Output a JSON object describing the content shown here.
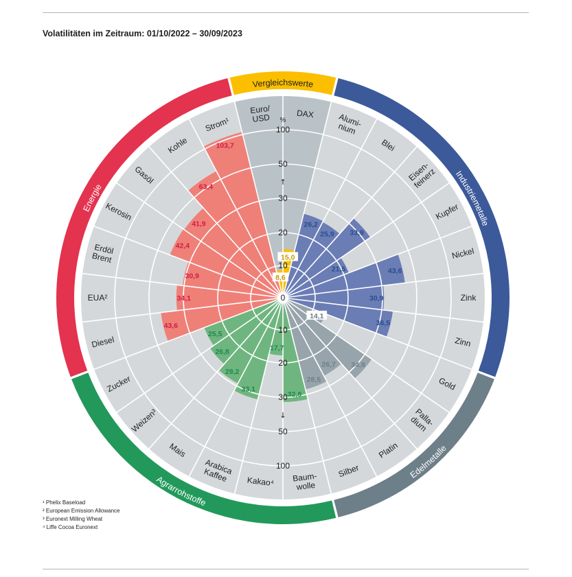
{
  "chart_data": {
    "type": "polar-bar",
    "title": "Volatilitäten im Zeitraum: 01/10/2022 – 30/09/2023",
    "radial_ticks": [
      "0",
      "10",
      "20",
      "30",
      "50",
      "100"
    ],
    "unit_label": "%",
    "groups": [
      {
        "name": "Vergleichswerte",
        "color": "#fbbf00",
        "value_color": "#c8960a",
        "bar_color": "#fbbf00",
        "items": [
          {
            "label": [
              "Euro/",
              "USD"
            ],
            "value": 8.6,
            "value_text": "8,6"
          },
          {
            "label": [
              "DAX"
            ],
            "value": 15.0,
            "value_text": "15,0"
          }
        ]
      },
      {
        "name": "Industriemetalle",
        "color": "#3c5a9a",
        "value_color": "#2b4c8e",
        "bar_color": "#6b7db5",
        "items": [
          {
            "label": [
              "Alumi-",
              "nium"
            ],
            "value": 26.2,
            "value_text": "26,2"
          },
          {
            "label": [
              "Blei"
            ],
            "value": 25.9,
            "value_text": "25,9"
          },
          {
            "label": [
              "Eisen-",
              "feinerz"
            ],
            "value": 33.9,
            "value_text": "33,9"
          },
          {
            "label": [
              "Kupfer"
            ],
            "value": 21.5,
            "value_text": "21,5"
          },
          {
            "label": [
              "Nickel"
            ],
            "value": 43.6,
            "value_text": "43,6"
          },
          {
            "label": [
              "Zink"
            ],
            "value": 30.9,
            "value_text": "30,9"
          },
          {
            "label": [
              "Zinn"
            ],
            "value": 36.5,
            "value_text": "36,5"
          }
        ]
      },
      {
        "name": "Edelmetalle",
        "color": "#6d7f88",
        "value_color": "#6d7f88",
        "bar_color": "#97a4ab",
        "items": [
          {
            "label": [
              "Gold"
            ],
            "value": 14.1,
            "value_text": "14,1"
          },
          {
            "label": [
              "Palla-",
              "dium"
            ],
            "value": 34.9,
            "value_text": "34,9"
          },
          {
            "label": [
              "Platin"
            ],
            "value": 26.7,
            "value_text": "26,7"
          },
          {
            "label": [
              "Silber"
            ],
            "value": 28.5,
            "value_text": "28,5"
          }
        ]
      },
      {
        "name": "Agrarrohstoffe",
        "color": "#22995a",
        "value_color": "#1d8a4e",
        "bar_color": "#6fb57f",
        "items": [
          {
            "label": [
              "Baum-",
              "wolle"
            ],
            "value": 32.8,
            "value_text": "32,8"
          },
          {
            "label": [
              "Kakao⁴"
            ],
            "value": 17.7,
            "value_text": "17,7"
          },
          {
            "label": [
              "Arabica",
              "Kaffee"
            ],
            "value": 33.1,
            "value_text": "33,1"
          },
          {
            "label": [
              "Mais"
            ],
            "value": 29.2,
            "value_text": "29,2"
          },
          {
            "label": [
              "Weizen³"
            ],
            "value": 26.8,
            "value_text": "26,8"
          },
          {
            "label": [
              "Zucker"
            ],
            "value": 25.5,
            "value_text": "25,5"
          }
        ]
      },
      {
        "name": "Energie",
        "color": "#e3334f",
        "value_color": "#d21c46",
        "bar_color": "#ef8078",
        "items": [
          {
            "label": [
              "Diesel"
            ],
            "value": 43.6,
            "value_text": "43,6"
          },
          {
            "label": [
              "EUA²"
            ],
            "value": 34.1,
            "value_text": "34,1"
          },
          {
            "label": [
              "Erdöl",
              "Brent"
            ],
            "value": 30.9,
            "value_text": "30,9"
          },
          {
            "label": [
              "Kerosin"
            ],
            "value": 42.4,
            "value_text": "42,4"
          },
          {
            "label": [
              "Gasöl"
            ],
            "value": 41.9,
            "value_text": "41,9"
          },
          {
            "label": [
              "Kohle"
            ],
            "value": 63.4,
            "value_text": "63,4"
          },
          {
            "label": [
              "Strom¹"
            ],
            "value": 103.7,
            "value_text": "103,7"
          }
        ]
      }
    ],
    "colors": {
      "sector_background": "#d5d8db",
      "sector_background_alt": "#b9c2c7",
      "grid_line": "#ffffff",
      "axis_text": "#1e1e1e"
    }
  },
  "footnotes": [
    "¹ Phelix Baseload",
    "² European Emission Allowance",
    "³ Euronext Milling Wheat",
    "⁴ Liffe Cocoa Euronext"
  ]
}
